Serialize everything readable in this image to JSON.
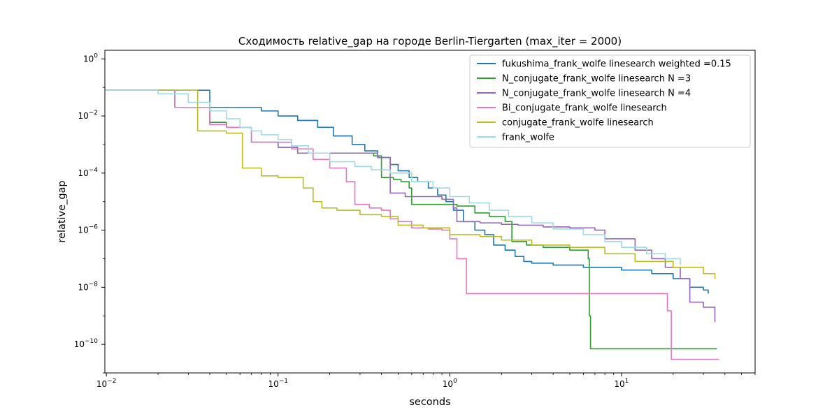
{
  "chart_data": {
    "type": "line",
    "title": "Сходимость relative_gap на городе Berlin-Tiergarten  (max_iter = 2000)",
    "xlabel": "seconds",
    "ylabel": "relative_gap",
    "xscale": "log",
    "yscale": "log",
    "xlim": [
      0.0098,
      60
    ],
    "ylim": [
      1e-11,
      2
    ],
    "x_ticks": [
      {
        "value": 0.01,
        "base": "10",
        "exp": "−2"
      },
      {
        "value": 0.1,
        "base": "10",
        "exp": "−1"
      },
      {
        "value": 1,
        "base": "10",
        "exp": "0"
      },
      {
        "value": 10,
        "base": "10",
        "exp": "1"
      }
    ],
    "y_ticks": [
      {
        "value": 1,
        "base": "10",
        "exp": "0"
      },
      {
        "value": 0.01,
        "base": "10",
        "exp": "−2"
      },
      {
        "value": 0.0001,
        "base": "10",
        "exp": "−4"
      },
      {
        "value": 1e-06,
        "base": "10",
        "exp": "−6"
      },
      {
        "value": 1e-08,
        "base": "10",
        "exp": "−8"
      },
      {
        "value": 1e-10,
        "base": "10",
        "exp": "−10"
      }
    ],
    "grid": false,
    "legend_position": "top-right",
    "series": [
      {
        "name": "fukushima_frank_wolfe linesearch weighted =0.15",
        "color": "#1f77b4",
        "x": [
          0.0098,
          0.021,
          0.04,
          0.06,
          0.08,
          0.1,
          0.13,
          0.17,
          0.21,
          0.27,
          0.32,
          0.38,
          0.45,
          0.5,
          0.58,
          0.65,
          0.75,
          0.85,
          0.95,
          1.05,
          1.2,
          1.4,
          1.6,
          1.8,
          2.1,
          2.4,
          2.7,
          3.0,
          4.0,
          6.0,
          10,
          15,
          20,
          25,
          30,
          32
        ],
        "y": [
          0.08,
          0.08,
          0.02,
          0.02,
          0.015,
          0.01,
          0.007,
          0.004,
          0.002,
          0.001,
          0.0006,
          0.00035,
          0.0002,
          0.00012,
          7e-05,
          5e-05,
          3e-05,
          1.7e-05,
          1e-05,
          5e-06,
          2e-06,
          1e-06,
          7e-07,
          3e-07,
          2e-07,
          1.2e-07,
          8e-08,
          7e-08,
          6e-08,
          5e-08,
          4e-08,
          3e-08,
          2e-08,
          1e-08,
          8e-09,
          6e-09
        ]
      },
      {
        "name": "N_conjugate_frank_wolfe linesearch N =3",
        "color": "#2ca02c",
        "x": [
          0.0098,
          0.015,
          0.025,
          0.04,
          0.05,
          0.07,
          0.1,
          0.13,
          0.2,
          0.3,
          0.36,
          0.4,
          0.47,
          0.52,
          0.58,
          0.6,
          0.9,
          1.1,
          1.4,
          1.7,
          2.1,
          2.3,
          2.8,
          3.5,
          5.0,
          6.4,
          6.5,
          6.6,
          10,
          20,
          36
        ],
        "y": [
          0.08,
          0.08,
          0.02,
          0.006,
          0.004,
          0.0012,
          0.0008,
          0.0005,
          0.0005,
          0.0005,
          0.0004,
          7e-05,
          6e-05,
          5e-05,
          3e-05,
          8e-06,
          8e-06,
          7e-06,
          4e-06,
          3e-06,
          2e-06,
          4e-07,
          3e-07,
          2.5e-07,
          2e-07,
          1e-07,
          1e-09,
          7e-11,
          7e-11,
          7e-11,
          7e-11
        ]
      },
      {
        "name": "N_conjugate_frank_wolfe linesearch N =4",
        "color": "#9467bd",
        "x": [
          0.0098,
          0.015,
          0.025,
          0.04,
          0.05,
          0.07,
          0.1,
          0.13,
          0.2,
          0.3,
          0.38,
          0.45,
          0.55,
          0.7,
          0.9,
          1.05,
          1.1,
          1.5,
          2.0,
          2.5,
          3.5,
          5.0,
          7.0,
          8.0,
          12,
          15,
          18,
          22,
          25,
          30,
          35
        ],
        "y": [
          0.08,
          0.08,
          0.02,
          0.005,
          0.004,
          0.0012,
          0.0008,
          0.0005,
          0.0005,
          0.0005,
          0.00035,
          2e-05,
          1.5e-05,
          1.5e-05,
          1.2e-05,
          6e-06,
          2e-06,
          1.8e-06,
          1.6e-06,
          1.5e-06,
          1.3e-06,
          1.2e-06,
          1e-06,
          5e-07,
          2e-07,
          1e-07,
          5e-08,
          2e-08,
          3e-09,
          2e-09,
          6e-10
        ]
      },
      {
        "name": "Bi_conjugate_frank_wolfe linesearch",
        "color": "#e377c2",
        "x": [
          0.0098,
          0.015,
          0.025,
          0.04,
          0.05,
          0.07,
          0.09,
          0.12,
          0.16,
          0.2,
          0.25,
          0.28,
          0.34,
          0.4,
          0.45,
          0.5,
          0.6,
          0.75,
          0.9,
          1.0,
          1.1,
          1.25,
          2.0,
          5.0,
          10,
          15,
          18.5,
          19.5,
          37
        ],
        "y": [
          0.08,
          0.08,
          0.02,
          0.005,
          0.004,
          0.0012,
          0.0012,
          0.0007,
          0.0003,
          0.00015,
          5e-05,
          8e-06,
          6e-06,
          5e-06,
          2.5e-06,
          2e-06,
          1.2e-06,
          1.1e-06,
          1e-06,
          5e-07,
          1e-07,
          6e-09,
          6e-09,
          6e-09,
          6e-09,
          6e-09,
          1.5e-09,
          3e-11,
          3e-11
        ]
      },
      {
        "name": "conjugate_frank_wolfe linesearch",
        "color": "#bcbd22",
        "x": [
          0.0098,
          0.015,
          0.034,
          0.05,
          0.062,
          0.08,
          0.1,
          0.14,
          0.16,
          0.18,
          0.22,
          0.3,
          0.4,
          0.5,
          0.7,
          1.0,
          1.5,
          2.0,
          3.0,
          5.0,
          8.0,
          12,
          20,
          30,
          35
        ],
        "y": [
          0.08,
          0.08,
          0.003,
          0.0025,
          0.00015,
          8e-05,
          7e-05,
          3e-05,
          1e-05,
          6e-06,
          5e-06,
          3.5e-06,
          3e-06,
          1.5e-06,
          1.2e-06,
          7e-07,
          6e-07,
          4.5e-07,
          3e-07,
          2.5e-07,
          1.5e-07,
          8e-08,
          5e-08,
          3e-08,
          2e-08
        ]
      },
      {
        "name": "frank_wolfe",
        "color": "#9edae5",
        "x": [
          0.0098,
          0.02,
          0.03,
          0.04,
          0.05,
          0.06,
          0.07,
          0.08,
          0.1,
          0.12,
          0.15,
          0.2,
          0.28,
          0.35,
          0.45,
          0.6,
          0.8,
          1.0,
          1.3,
          1.7,
          2.2,
          3.0,
          4.0,
          6.0,
          8.0,
          10,
          14,
          18,
          22
        ],
        "y": [
          0.08,
          0.06,
          0.03,
          0.015,
          0.008,
          0.004,
          0.003,
          0.0022,
          0.0015,
          0.0009,
          0.0005,
          0.00025,
          0.00017,
          0.00013,
          0.0001,
          5e-05,
          3e-05,
          1.5e-05,
          9e-06,
          5e-06,
          3e-06,
          1.8e-06,
          1.1e-06,
          7e-07,
          4e-07,
          2.5e-07,
          1.5e-07,
          1e-07,
          6e-08
        ]
      }
    ]
  }
}
